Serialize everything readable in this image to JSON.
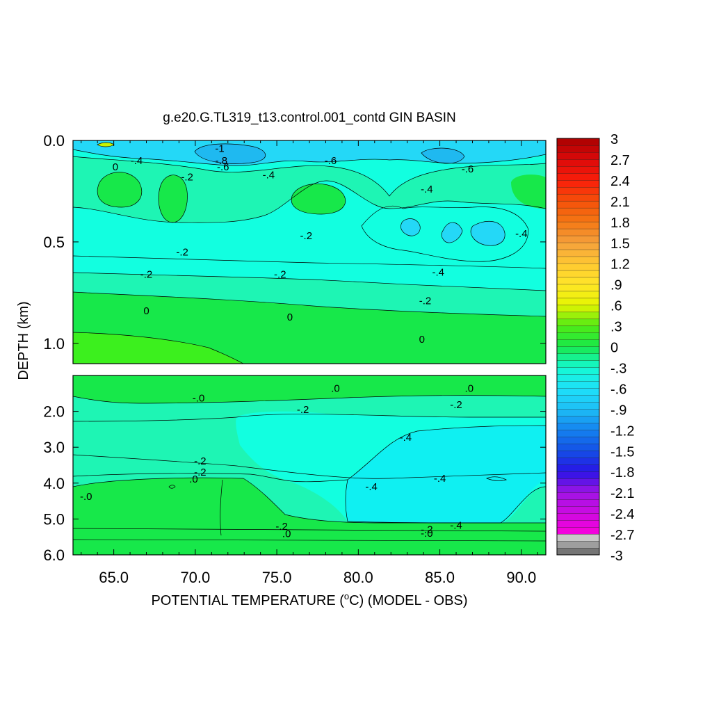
{
  "chart_data": {
    "type": "heatmap",
    "title": "g.e20.G.TL319_t13.control.001_contd GIN BASIN",
    "xlabel": "POTENTIAL TEMPERATURE (",
    "xlabel_unit_sup": "o",
    "xlabel_unit": "C",
    "xlabel_suffix": ") (MODEL - OBS)",
    "ylabel": "DEPTH (km)",
    "x_range": [
      62.5,
      91.5
    ],
    "x_ticks": [
      65,
      70,
      75,
      80,
      85,
      90
    ],
    "x_tick_labels": [
      "65.0",
      "70.0",
      "75.0",
      "80.0",
      "85.0",
      "90.0"
    ],
    "panels": [
      {
        "name": "upper",
        "y_range": [
          0.0,
          1.1
        ],
        "y_ticks": [
          0.0,
          0.5,
          1.0
        ],
        "y_tick_labels": [
          "0.0",
          "0.5",
          "1.0"
        ],
        "contour_labels": [
          {
            "text": "-.4",
            "x": 66.4,
            "y": 0.1
          },
          {
            "text": "0",
            "x": 65.1,
            "y": 0.13
          },
          {
            "text": "-1",
            "x": 71.5,
            "y": 0.04
          },
          {
            "text": "-.8",
            "x": 71.6,
            "y": 0.1
          },
          {
            "text": "-.6",
            "x": 71.7,
            "y": 0.13
          },
          {
            "text": "-.2",
            "x": 69.5,
            "y": 0.18
          },
          {
            "text": "-.4",
            "x": 74.5,
            "y": 0.17
          },
          {
            "text": "-.6",
            "x": 78.3,
            "y": 0.1
          },
          {
            "text": "-.6",
            "x": 86.7,
            "y": 0.14
          },
          {
            "text": "-.4",
            "x": 84.2,
            "y": 0.24
          },
          {
            "text": "-.4",
            "x": 90.0,
            "y": 0.46
          },
          {
            "text": "-.2",
            "x": 69.2,
            "y": 0.55
          },
          {
            "text": "-.2",
            "x": 76.8,
            "y": 0.47
          },
          {
            "text": "-.2",
            "x": 67.0,
            "y": 0.66
          },
          {
            "text": "-.2",
            "x": 75.2,
            "y": 0.66
          },
          {
            "text": "-.4",
            "x": 84.9,
            "y": 0.65
          },
          {
            "text": "-.2",
            "x": 84.1,
            "y": 0.79
          },
          {
            "text": "0",
            "x": 67.0,
            "y": 0.84
          },
          {
            "text": "0",
            "x": 75.8,
            "y": 0.87
          },
          {
            "text": "0",
            "x": 83.9,
            "y": 0.98
          }
        ]
      },
      {
        "name": "lower",
        "y_range": [
          1.0,
          6.0
        ],
        "y_ticks": [
          2.0,
          3.0,
          4.0,
          5.0,
          6.0
        ],
        "y_tick_labels": [
          "2.0",
          "3.0",
          "4.0",
          "5.0",
          "6.0"
        ],
        "contour_labels": [
          {
            "text": ".0",
            "x": 78.6,
            "y": 1.36
          },
          {
            "text": ".0",
            "x": 86.8,
            "y": 1.36
          },
          {
            "text": "-.0",
            "x": 70.2,
            "y": 1.63
          },
          {
            "text": "-.2",
            "x": 86.0,
            "y": 1.81
          },
          {
            "text": "-.2",
            "x": 76.6,
            "y": 1.95
          },
          {
            "text": "-.4",
            "x": 82.9,
            "y": 2.72
          },
          {
            "text": "-.2",
            "x": 70.3,
            "y": 3.38
          },
          {
            "text": "-.2",
            "x": 70.3,
            "y": 3.69
          },
          {
            "text": ".0",
            "x": 69.9,
            "y": 3.89
          },
          {
            "text": "-.4",
            "x": 85.0,
            "y": 3.87
          },
          {
            "text": "-.4",
            "x": 80.8,
            "y": 4.1
          },
          {
            "text": "-.0",
            "x": 63.3,
            "y": 4.37
          },
          {
            "text": "-.2",
            "x": 75.3,
            "y": 5.21
          },
          {
            "text": ".0",
            "x": 75.6,
            "y": 5.41
          },
          {
            "text": "-.4",
            "x": 86.0,
            "y": 5.18
          },
          {
            "text": "-.2",
            "x": 84.2,
            "y": 5.29
          },
          {
            "text": "-.0",
            "x": 84.2,
            "y": 5.4
          }
        ]
      }
    ],
    "colorbar": {
      "min": -3,
      "max": 3,
      "step": 0.1,
      "tick_labels": [
        "3",
        "2.7",
        "2.4",
        "2.1",
        "1.8",
        "1.5",
        "1.2",
        ".9",
        ".6",
        ".3",
        "0",
        "-.3",
        "-.6",
        "-.9",
        "-1.2",
        "-1.5",
        "-1.8",
        "-2.1",
        "-2.4",
        "-2.7",
        "-3"
      ]
    },
    "colors": {
      "zero_band": "#17e84a",
      "slightly_negative": "#1ef5b4",
      "neg_02_04": "#12ffe0",
      "neg_04_06": "#0ff0f2",
      "neg_06_08": "#24d8f7",
      "neg_08_10": "#1fb9f0",
      "positive_green": "#3cf01e",
      "positive_yellow": "#c8f500"
    }
  }
}
